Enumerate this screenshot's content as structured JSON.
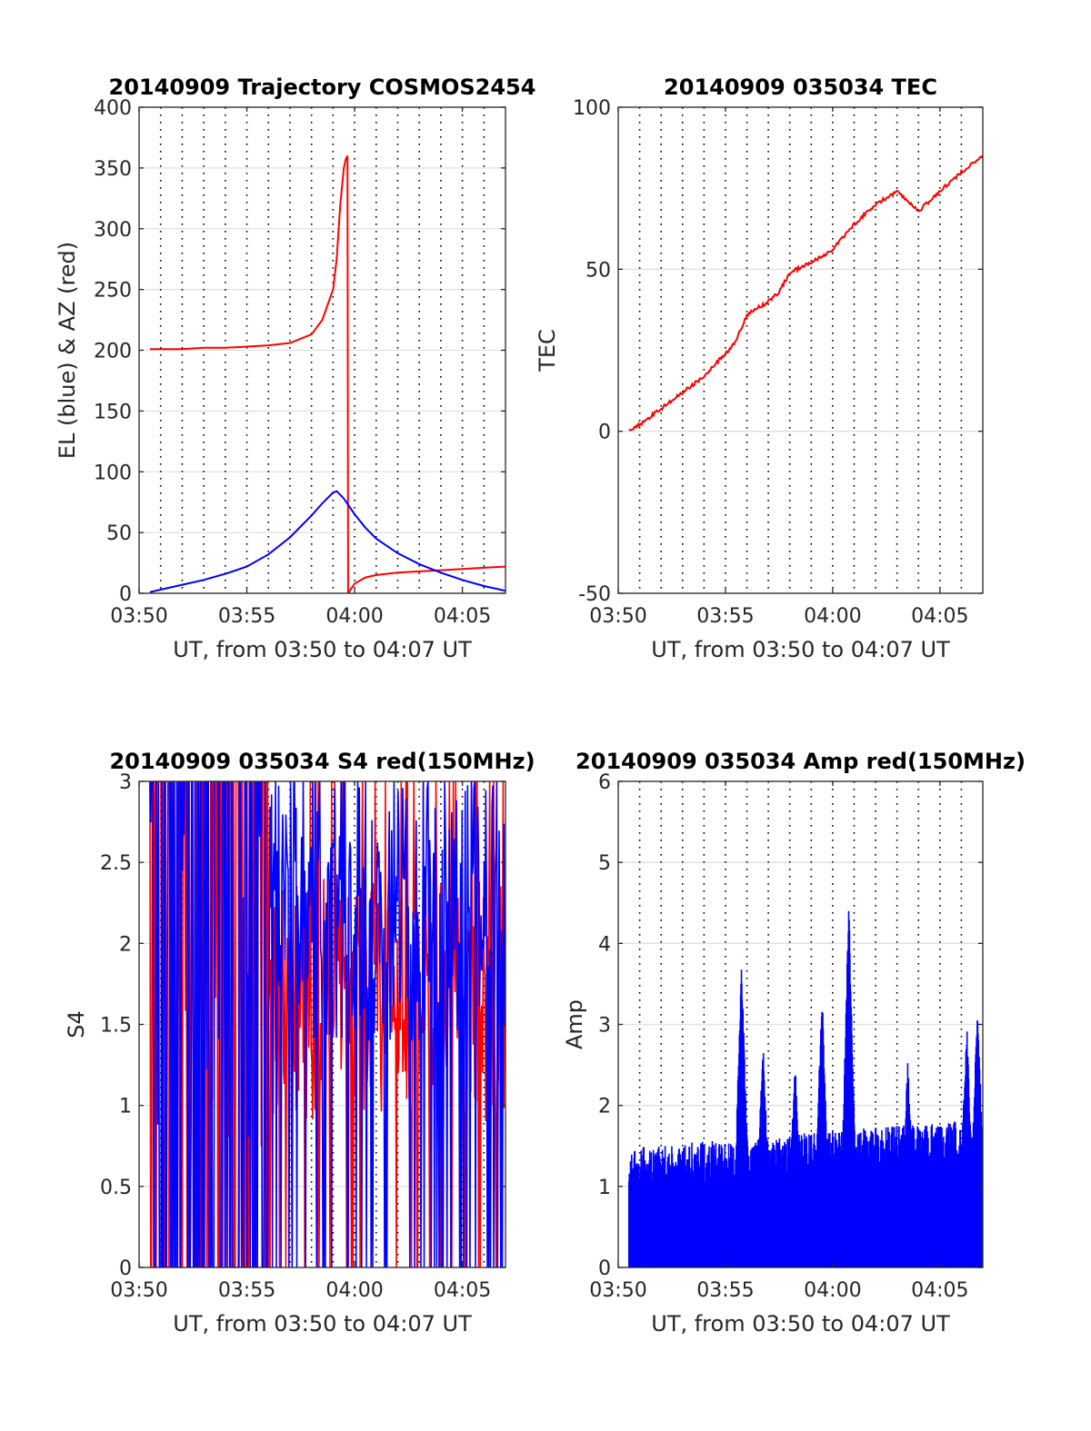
{
  "colors": {
    "el": "#0000ff",
    "az": "#ff0000",
    "tec": "#ff0000",
    "s4_red": "#ff0000",
    "s4_blue": "#0000ff",
    "amp": "#0000ff",
    "grid": "#e0e0e0",
    "text": "#262626"
  },
  "chart_data": [
    {
      "type": "line",
      "title": "20140909 Trajectory COSMOS2454",
      "xlabel": "UT, from 03:50 to 04:07 UT",
      "ylabel": "EL (blue) & AZ (red)",
      "xlim": [
        "03:50",
        "04:07"
      ],
      "ylim": [
        0,
        400
      ],
      "xticks": [
        "03:50",
        "03:55",
        "04:00",
        "04:05"
      ],
      "yticks": [
        0,
        50,
        100,
        150,
        200,
        250,
        300,
        350,
        400
      ],
      "grid": "horizontal solid, vertical dotted every minute",
      "series": [
        {
          "name": "AZ",
          "color": "red",
          "x": [
            "03:50:30",
            "03:51:00",
            "03:52:00",
            "03:53:00",
            "03:54:00",
            "03:55:00",
            "03:56:00",
            "03:57:00",
            "03:58:00",
            "03:58:30",
            "03:59:00",
            "03:59:10",
            "03:59:20",
            "03:59:30",
            "03:59:35",
            "03:59:40",
            "03:59:41",
            "03:59:42",
            "04:00:00",
            "04:00:30",
            "04:01:00",
            "04:02:00",
            "04:03:00",
            "04:04:00",
            "04:05:00",
            "04:06:00",
            "04:07:00"
          ],
          "values": [
            201,
            201,
            201,
            202,
            202,
            203,
            204,
            206,
            213,
            225,
            250,
            275,
            320,
            350,
            357,
            360,
            150,
            0,
            8,
            13,
            15,
            17,
            18,
            19,
            20,
            21,
            22
          ]
        },
        {
          "name": "EL",
          "color": "blue",
          "x": [
            "03:50:30",
            "03:51:00",
            "03:52:00",
            "03:53:00",
            "03:54:00",
            "03:55:00",
            "03:56:00",
            "03:57:00",
            "03:58:00",
            "03:58:30",
            "03:59:00",
            "03:59:10",
            "03:59:30",
            "04:00:00",
            "04:00:30",
            "04:01:00",
            "04:02:00",
            "04:03:00",
            "04:04:00",
            "04:05:00",
            "04:06:00",
            "04:07:00"
          ],
          "values": [
            1,
            3,
            7,
            11,
            16,
            22,
            32,
            46,
            64,
            74,
            83,
            84,
            78,
            65,
            54,
            45,
            33,
            24,
            17,
            11,
            6,
            2
          ]
        }
      ]
    },
    {
      "type": "line",
      "title": "20140909 035034 TEC",
      "xlabel": "UT, from 03:50 to 04:07 UT",
      "ylabel": "TEC",
      "xlim": [
        "03:50",
        "04:07"
      ],
      "ylim": [
        -50,
        100
      ],
      "xticks": [
        "03:50",
        "03:55",
        "04:00",
        "04:05"
      ],
      "yticks": [
        -50,
        0,
        50,
        100
      ],
      "grid": "horizontal solid, vertical dotted every minute",
      "series": [
        {
          "name": "TEC",
          "color": "red",
          "x": [
            "03:50:30",
            "03:51:00",
            "03:52:00",
            "03:53:00",
            "03:54:00",
            "03:55:00",
            "03:55:30",
            "03:56:00",
            "03:56:30",
            "03:57:00",
            "03:57:30",
            "03:58:00",
            "03:59:00",
            "04:00:00",
            "04:01:00",
            "04:02:00",
            "04:03:00",
            "04:03:30",
            "04:04:00",
            "04:05:00",
            "04:06:00",
            "04:07:00"
          ],
          "values": [
            0,
            2,
            7,
            12,
            17,
            24,
            28,
            36,
            38,
            40,
            43,
            49,
            52,
            56,
            64,
            70,
            74,
            71,
            68,
            74,
            80,
            85
          ]
        }
      ]
    },
    {
      "type": "line",
      "title": "20140909 035034 S4 red(150MHz)",
      "xlabel": "UT, from 03:50 to 04:07 UT",
      "ylabel": "S4",
      "xlim": [
        "03:50",
        "04:07"
      ],
      "ylim": [
        0,
        3
      ],
      "xticks": [
        "03:50",
        "03:55",
        "04:00",
        "04:05"
      ],
      "yticks": [
        0,
        0.5,
        1,
        1.5,
        2,
        2.5,
        3
      ],
      "grid": "horizontal solid, vertical dotted every minute",
      "series": [
        {
          "name": "S4 red",
          "color": "red",
          "description_values_approx": {
            "min": 0,
            "max": 3,
            "typical_after_0356": [
              1.5,
              2.2
            ]
          }
        },
        {
          "name": "S4 blue",
          "color": "blue",
          "description_values_approx": {
            "min": 0,
            "max": 3,
            "typical_after_0356": [
              1.8,
              2.6
            ]
          }
        }
      ]
    },
    {
      "type": "line",
      "title": "20140909 035034 Amp red(150MHz)",
      "xlabel": "UT, from 03:50 to 04:07 UT",
      "ylabel": "Amp",
      "xlim": [
        "03:50",
        "04:07"
      ],
      "ylim": [
        0,
        6
      ],
      "xticks": [
        "03:50",
        "03:55",
        "04:00",
        "04:05"
      ],
      "yticks": [
        0,
        1,
        2,
        3,
        4,
        5,
        6
      ],
      "grid": "horizontal solid, vertical dotted every minute",
      "series": [
        {
          "name": "Amp",
          "color": "blue",
          "baseline_level": 1.1,
          "peaks": [
            {
              "x": "03:55:45",
              "value": 3.7
            },
            {
              "x": "03:56:45",
              "value": 2.7
            },
            {
              "x": "03:58:15",
              "value": 2.4
            },
            {
              "x": "03:59:30",
              "value": 3.3
            },
            {
              "x": "04:00:45",
              "value": 4.4
            },
            {
              "x": "04:03:30",
              "value": 2.4
            },
            {
              "x": "04:06:15",
              "value": 2.9
            },
            {
              "x": "04:06:45",
              "value": 3.2
            }
          ]
        }
      ]
    }
  ]
}
